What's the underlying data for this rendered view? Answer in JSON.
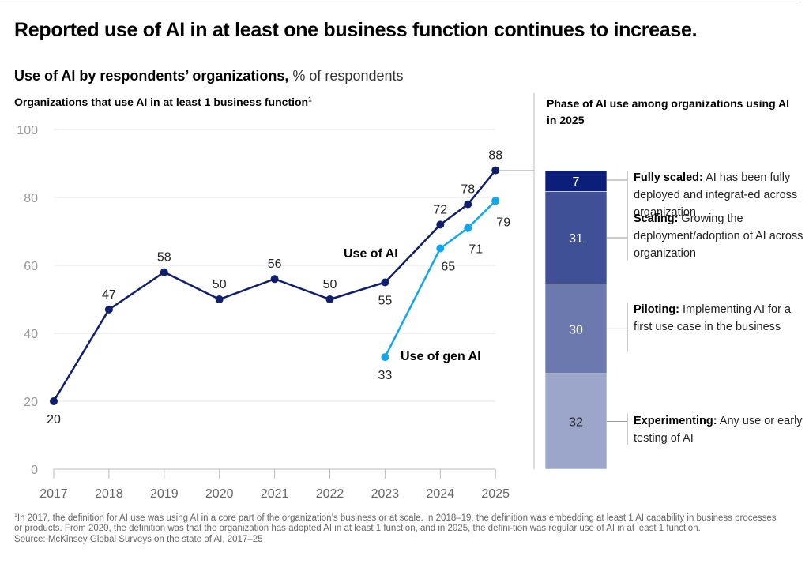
{
  "title": "Reported use of AI in at least one business function continues to increase.",
  "subtitle": {
    "bold": "Use of AI by respondents’ organizations,",
    "unit": "% of respondents"
  },
  "left_heading": {
    "text": "Organizations that use AI in at least 1 business function",
    "footnote_mark": "1"
  },
  "right_heading": "Phase of AI use among organizations using AI in 2025",
  "colors": {
    "use_of_ai": "#0f1f6e",
    "use_of_gen_ai": "#14a6ec",
    "fully_scaled": "#0b1f7a",
    "scaling": "#3f5096",
    "piloting": "#6b79ae",
    "experimenting": "#9ca6cb"
  },
  "chart_data": [
    {
      "type": "line",
      "title": "Organizations that use AI in at least 1 business function",
      "ylim": [
        0,
        100
      ],
      "yticks": [
        "0",
        "20",
        "40",
        "60",
        "80",
        "100"
      ],
      "xticks": [
        "2017",
        "2018",
        "2019",
        "2020",
        "2021",
        "2022",
        "2023",
        "2024",
        "2025"
      ],
      "grid": true,
      "series": [
        {
          "name": "Use of AI",
          "x": [
            2017,
            2018,
            2019,
            2020,
            2021,
            2022,
            2023,
            2024,
            2024.5,
            2025
          ],
          "values": [
            20,
            47,
            58,
            50,
            56,
            50,
            55,
            72,
            78,
            88
          ]
        },
        {
          "name": "Use of gen AI",
          "x": [
            2023,
            2024,
            2024.5,
            2025
          ],
          "values": [
            33,
            65,
            71,
            79
          ]
        }
      ]
    },
    {
      "type": "bar",
      "stacked": true,
      "title": "Phase of AI use among organizations using AI in 2025",
      "segments": [
        {
          "name": "Fully scaled",
          "value": 7,
          "description": "AI has been fully deployed and integrat-ed across organization"
        },
        {
          "name": "Scaling",
          "value": 31,
          "description": "Growing the deployment/adoption of AI across organization"
        },
        {
          "name": "Piloting",
          "value": 30,
          "description": "Implementing AI for a first use case in the business"
        },
        {
          "name": "Experimenting",
          "value": 32,
          "description": "Any use or early testing of AI"
        }
      ]
    }
  ],
  "footnote": {
    "mark": "1",
    "text": "In 2017, the definition for AI use was using AI in a core part of the organization’s business or at scale. In 2018–19, the definition was embedding at least 1 AI capability in business processes or products. From 2020, the definition was that the organization has adopted AI in at least 1 function, and in 2025, the defini-tion was regular use of AI in at least 1 function."
  },
  "source": "Source: McKinsey Global Surveys on the state of AI, 2017–25"
}
